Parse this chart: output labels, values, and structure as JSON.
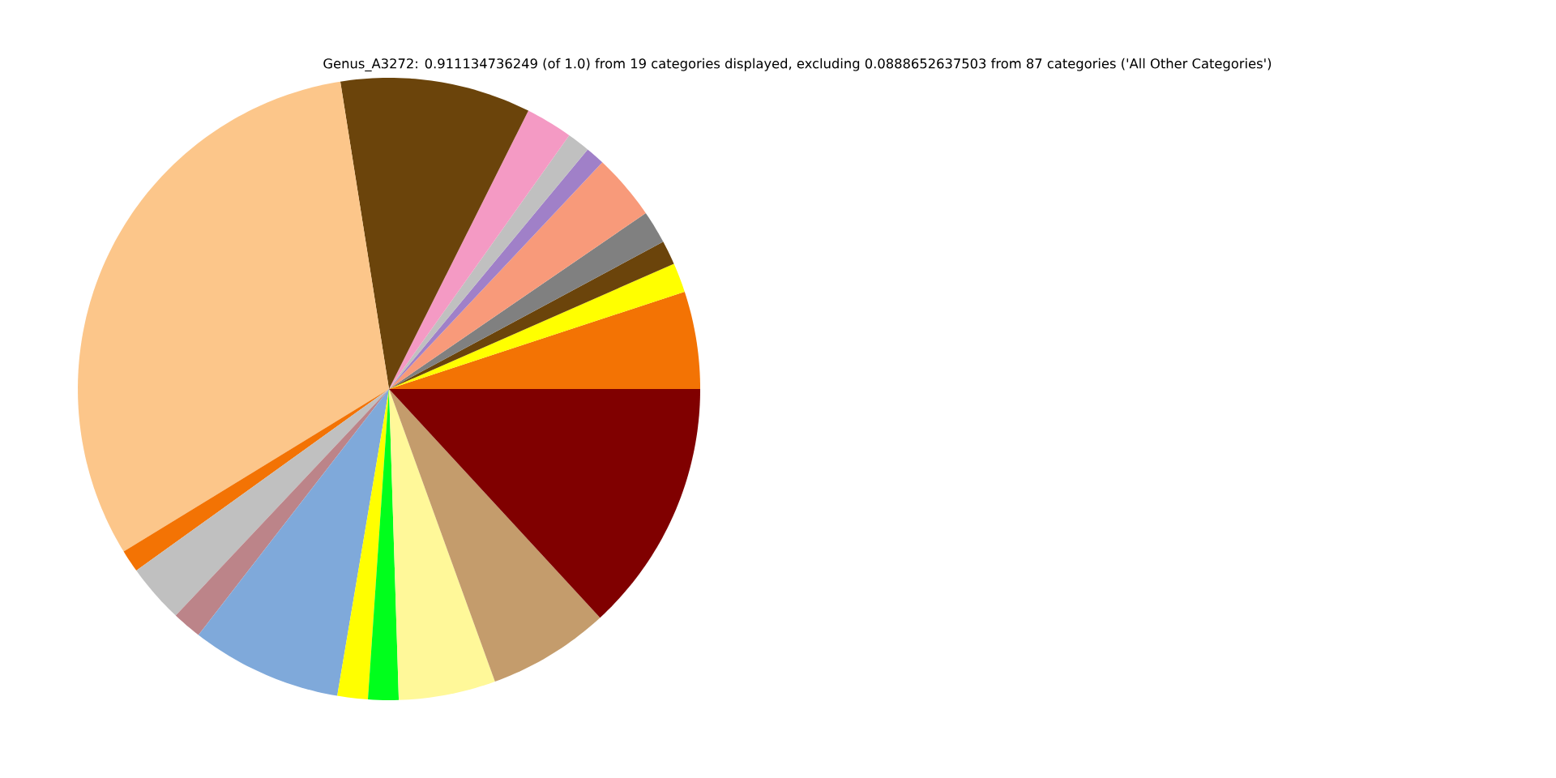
{
  "chart_data": {
    "type": "pie",
    "title": "Genus_A3272: 0.911134736249 (of 1.0) from 19 categories displayed, excluding 0.0888652637503 from 87 categories ('All Other Categories')",
    "categories": [
      null,
      null,
      null,
      null,
      null,
      null,
      null,
      null,
      null,
      null,
      null,
      null,
      null,
      null,
      null,
      null,
      null,
      null,
      null
    ],
    "values": [
      5.06,
      1.53,
      1.25,
      1.72,
      3.42,
      1.0,
      1.19,
      2.44,
      9.89,
      31.25,
      1.17,
      3.06,
      1.53,
      7.83,
      1.58,
      1.58,
      5.03,
      6.33,
      13.14
    ],
    "colors": [
      "#f37304",
      "#ffff00",
      "#6b440b",
      "#808080",
      "#f89a7a",
      "#a080c8",
      "#c0c0c0",
      "#f49ac4",
      "#6b440b",
      "#fcc68a",
      "#f37304",
      "#c0c0c0",
      "#bc8489",
      "#7fa9da",
      "#ffff00",
      "#00ff1c",
      "#fff899",
      "#c49c6c",
      "#800000"
    ]
  }
}
